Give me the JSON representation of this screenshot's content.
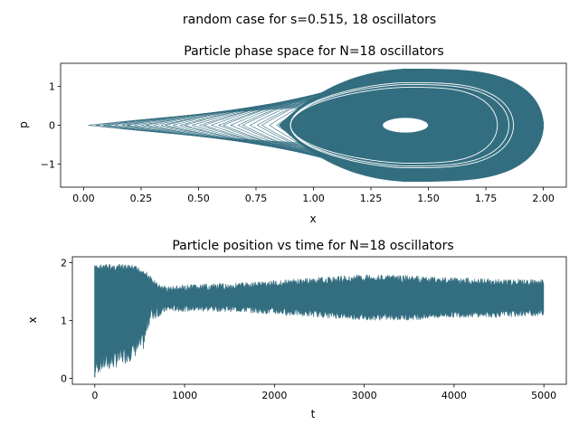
{
  "figure": {
    "suptitle": "random case for s=0.515, 18 oscillators",
    "trace_color": "#336e80"
  },
  "chart_data": [
    {
      "type": "line",
      "title": "Particle phase space for N=18 oscillators",
      "xlabel": "x",
      "ylabel": "p",
      "xlim": [
        -0.1,
        2.1
      ],
      "ylim": [
        -1.6,
        1.6
      ],
      "x_ticks": [
        0.0,
        0.25,
        0.5,
        0.75,
        1.0,
        1.25,
        1.5,
        1.75,
        2.0
      ],
      "x_tick_labels": [
        "0.00",
        "0.25",
        "0.50",
        "0.75",
        "1.00",
        "1.25",
        "1.50",
        "1.75",
        "2.00"
      ],
      "y_ticks": [
        -1,
        0,
        1
      ],
      "y_tick_labels": [
        "−1",
        "0",
        "1"
      ],
      "grid": false,
      "series": [
        {
          "color": "#336e80",
          "description_points": {
            "x_range": [
              0.02,
              2.0
            ],
            "p_range": [
              -1.45,
              1.45
            ],
            "center_x": 1.4,
            "center_p": 0.0,
            "hole_x_halfwidth": 0.1,
            "hole_p_halfheight": 0.2
          }
        }
      ]
    },
    {
      "type": "line",
      "title": "Particle position vs time for N=18 oscillators",
      "xlabel": "t",
      "ylabel": "x",
      "xlim": [
        -250,
        5250
      ],
      "ylim": [
        -0.1,
        2.1
      ],
      "x_ticks": [
        0,
        1000,
        2000,
        3000,
        4000,
        5000
      ],
      "x_tick_labels": [
        "0",
        "1000",
        "2000",
        "3000",
        "4000",
        "5000"
      ],
      "y_ticks": [
        0,
        1,
        2
      ],
      "y_tick_labels": [
        "0",
        "1",
        "2"
      ],
      "grid": false,
      "series": [
        {
          "color": "#336e80",
          "envelope": {
            "t": [
              0,
              50,
              200,
              400,
              550,
              600,
              700,
              800,
              1000,
              1500,
              2000,
              2500,
              3000,
              3500,
              4000,
              4500,
              5000
            ],
            "upper": [
              1.95,
              1.98,
              1.98,
              1.97,
              1.9,
              1.8,
              1.65,
              1.6,
              1.62,
              1.65,
              1.7,
              1.75,
              1.8,
              1.78,
              1.75,
              1.72,
              1.72
            ],
            "lower": [
              0.02,
              0.1,
              0.15,
              0.3,
              0.5,
              0.9,
              1.05,
              1.15,
              1.15,
              1.15,
              1.1,
              1.05,
              1.0,
              1.0,
              1.05,
              1.05,
              1.08
            ]
          }
        }
      ]
    }
  ]
}
